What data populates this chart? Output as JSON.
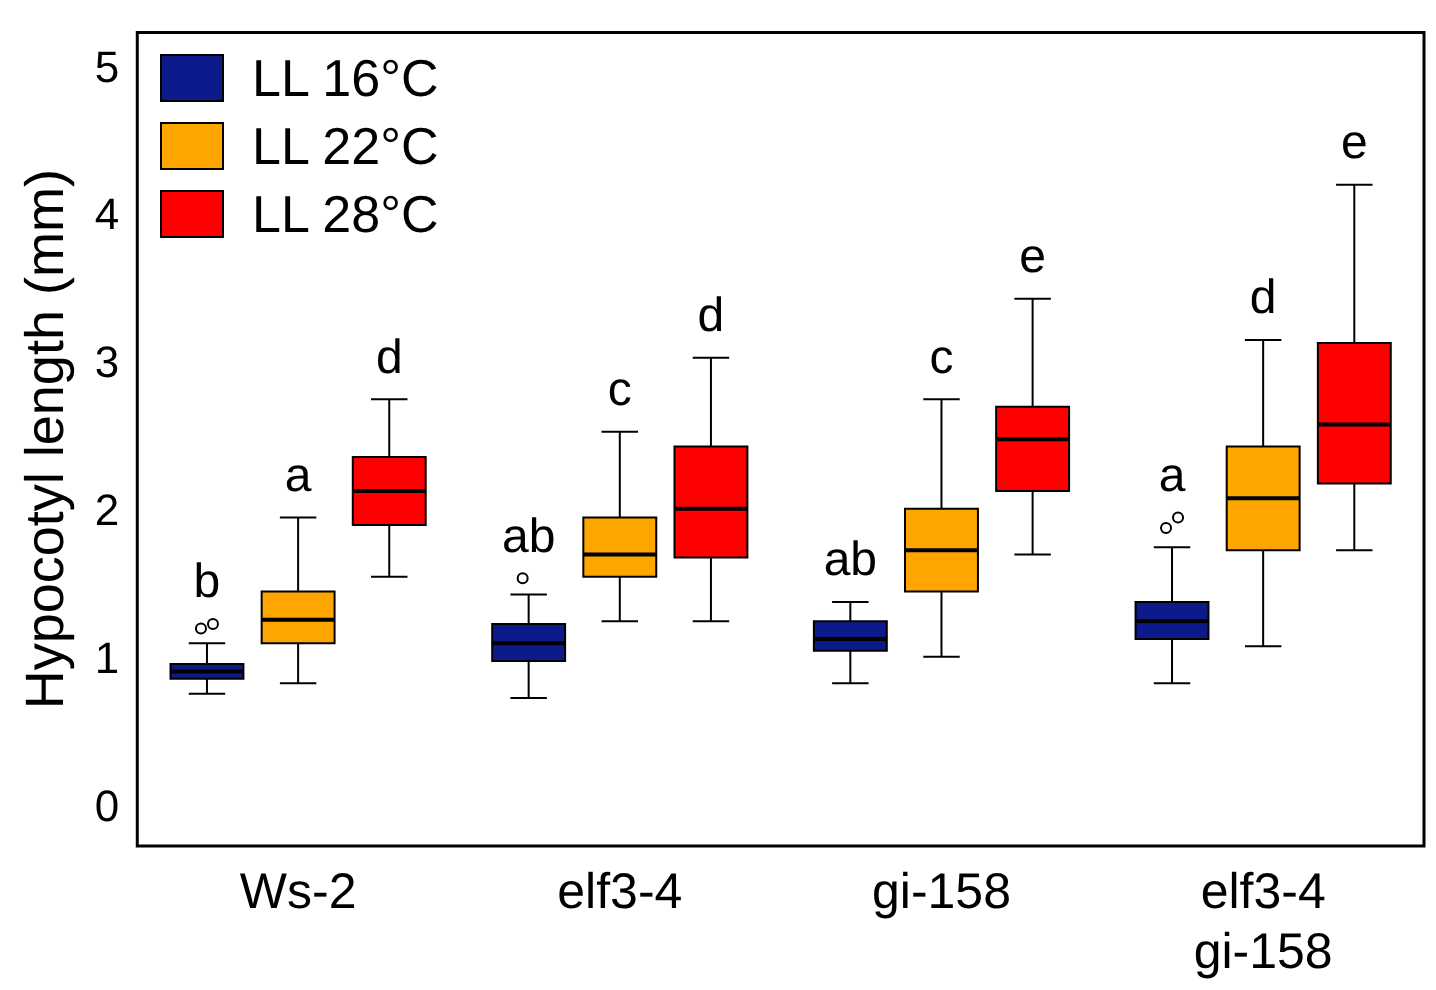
{
  "chart_data": {
    "type": "box",
    "ylabel": "Hypocotyl length (mm)",
    "categories": [
      "Ws-2",
      "elf3-4",
      "gi-158",
      "elf3-4\ngi-158"
    ],
    "ylim": [
      -0.25,
      5.25
    ],
    "yticks": [
      0,
      1,
      2,
      3,
      4,
      5
    ],
    "grid": false,
    "legend": "top left",
    "series": [
      {
        "name": "LL 16°C",
        "color": "#0c1a8c",
        "boxes": [
          {
            "low": 0.78,
            "q1": 0.88,
            "median": 0.93,
            "q3": 0.98,
            "high": 1.12,
            "outliers": [
              1.22,
              1.25
            ]
          },
          {
            "low": 0.75,
            "q1": 1.0,
            "median": 1.12,
            "q3": 1.25,
            "high": 1.45,
            "outliers": [
              1.56
            ]
          },
          {
            "low": 0.85,
            "q1": 1.07,
            "median": 1.15,
            "q3": 1.27,
            "high": 1.4
          },
          {
            "low": 0.85,
            "q1": 1.15,
            "median": 1.27,
            "q3": 1.4,
            "high": 1.77,
            "outliers": [
              1.9,
              1.97
            ]
          }
        ]
      },
      {
        "name": "LL 22°C",
        "color": "#ffa500",
        "boxes": [
          {
            "low": 0.85,
            "q1": 1.12,
            "median": 1.28,
            "q3": 1.47,
            "high": 1.97
          },
          {
            "low": 1.27,
            "q1": 1.57,
            "median": 1.72,
            "q3": 1.97,
            "high": 2.55
          },
          {
            "low": 1.03,
            "q1": 1.47,
            "median": 1.75,
            "q3": 2.03,
            "high": 2.77
          },
          {
            "low": 1.1,
            "q1": 1.75,
            "median": 2.1,
            "q3": 2.45,
            "high": 3.17
          }
        ]
      },
      {
        "name": "LL 28°C",
        "color": "#ff0000",
        "boxes": [
          {
            "low": 1.57,
            "q1": 1.92,
            "median": 2.15,
            "q3": 2.38,
            "high": 2.77
          },
          {
            "low": 1.27,
            "q1": 1.7,
            "median": 2.03,
            "q3": 2.45,
            "high": 3.05
          },
          {
            "low": 1.72,
            "q1": 2.15,
            "median": 2.5,
            "q3": 2.72,
            "high": 3.45
          },
          {
            "low": 1.75,
            "q1": 2.2,
            "median": 2.6,
            "q3": 3.15,
            "high": 4.22
          }
        ]
      }
    ],
    "annotations": [
      "b",
      "a",
      "d",
      "ab",
      "c",
      "d",
      "ab",
      "c",
      "e",
      "a",
      "d",
      "e"
    ]
  }
}
